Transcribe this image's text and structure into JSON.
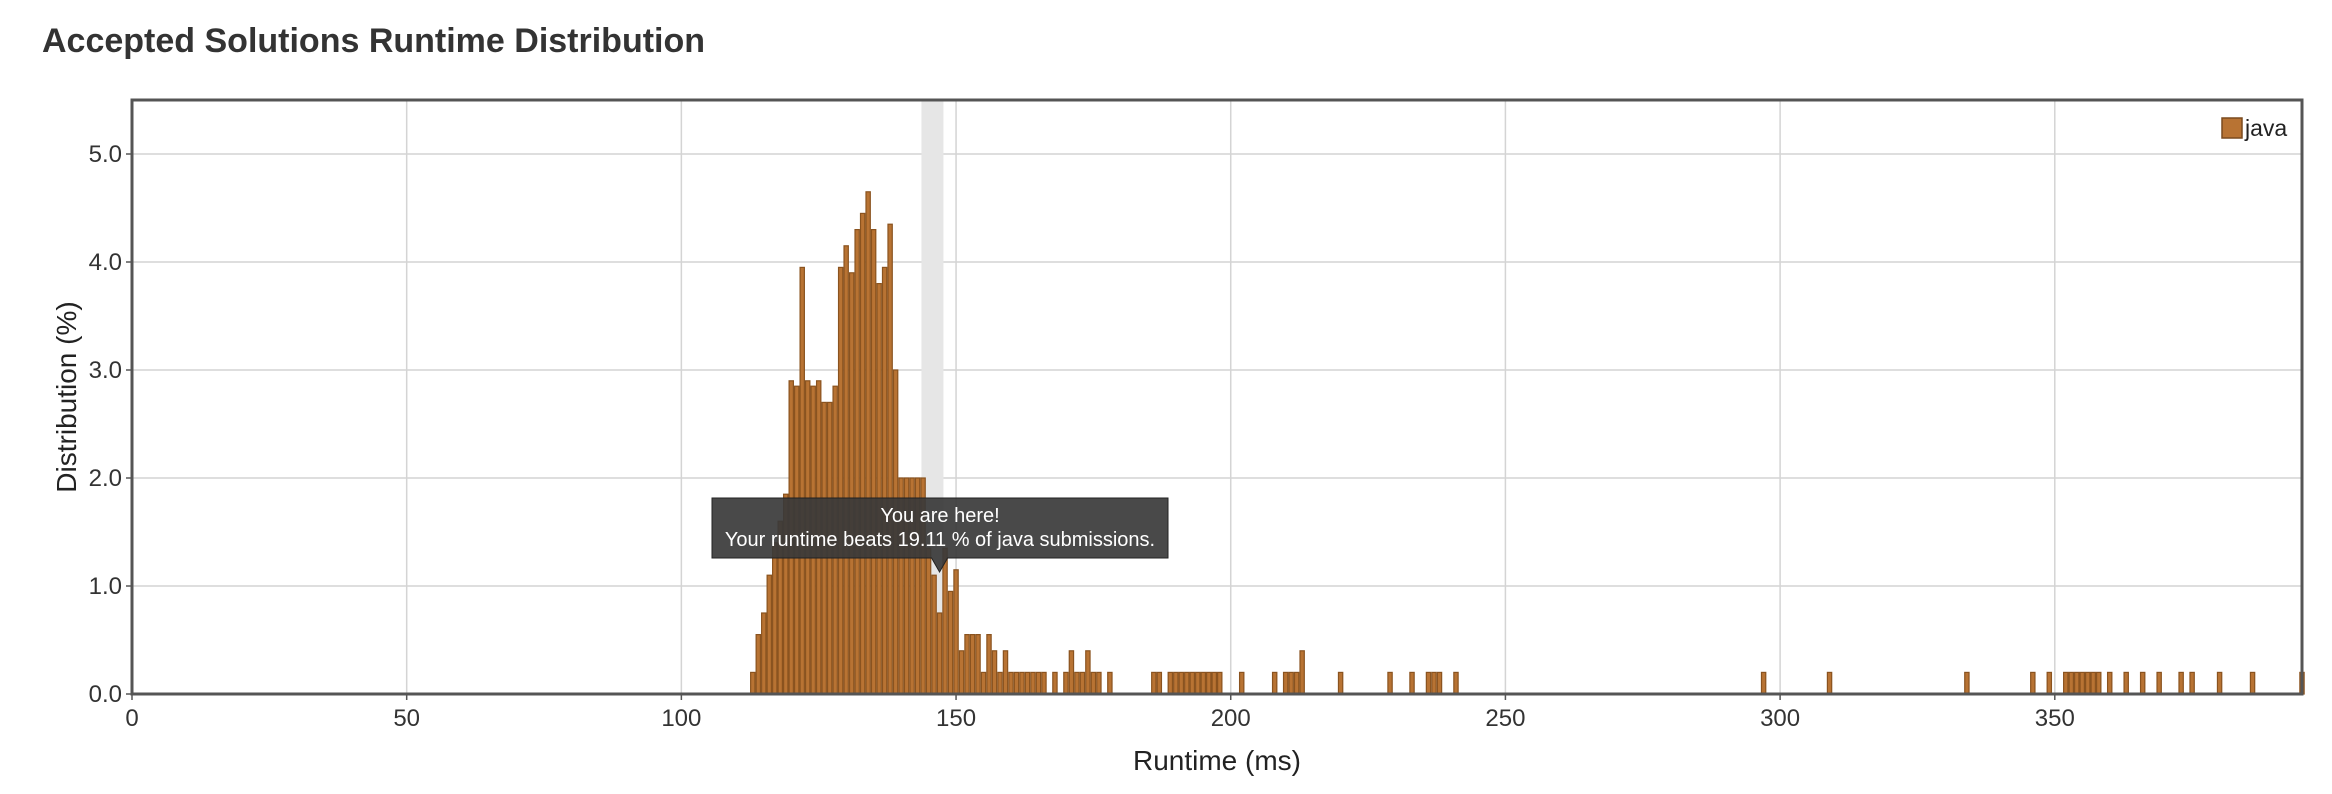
{
  "page": {
    "title": "Accepted Solutions Runtime Distribution"
  },
  "chart_data": {
    "type": "bar",
    "xlabel": "Runtime (ms)",
    "ylabel": "Distribution (%)",
    "xlim": [
      0,
      395
    ],
    "ylim": [
      0,
      5.5
    ],
    "x_ticks": [
      0,
      50,
      100,
      150,
      200,
      250,
      300,
      350
    ],
    "y_ticks": [
      0.0,
      1.0,
      2.0,
      3.0,
      4.0,
      5.0
    ],
    "y_tick_labels": [
      "0.0",
      "1.0",
      "2.0",
      "3.0",
      "4.0",
      "5.0"
    ],
    "grid": true,
    "legend_position": "top-right",
    "bar_width_ms": 1,
    "series": [
      {
        "name": "java",
        "color": "#b87333",
        "x": [
          113,
          114,
          115,
          116,
          117,
          118,
          119,
          120,
          121,
          122,
          123,
          124,
          125,
          126,
          127,
          128,
          129,
          130,
          131,
          132,
          133,
          134,
          135,
          136,
          137,
          138,
          139,
          140,
          141,
          142,
          143,
          144,
          145,
          146,
          147,
          148,
          149,
          150,
          151,
          152,
          153,
          154,
          155,
          156,
          157,
          158,
          159,
          160,
          161,
          162,
          163,
          164,
          165,
          166,
          168,
          170,
          171,
          172,
          173,
          174,
          175,
          176,
          178,
          186,
          187,
          189,
          190,
          191,
          192,
          193,
          194,
          195,
          196,
          197,
          198,
          202,
          208,
          210,
          211,
          212,
          213,
          220,
          229,
          233,
          236,
          237,
          238,
          241,
          297,
          309,
          334,
          346,
          349,
          352,
          353,
          354,
          355,
          356,
          357,
          358,
          360,
          363,
          366,
          369,
          373,
          375,
          380,
          386,
          395
        ],
        "values": [
          0.2,
          0.55,
          0.75,
          1.1,
          1.4,
          1.6,
          1.85,
          2.9,
          2.85,
          3.95,
          2.9,
          2.85,
          2.9,
          2.7,
          2.7,
          2.85,
          3.95,
          4.15,
          3.9,
          4.3,
          4.45,
          4.65,
          4.3,
          3.8,
          3.95,
          4.35,
          3.0,
          2.0,
          2.0,
          2.0,
          2.0,
          2.0,
          1.35,
          1.1,
          0.75,
          1.35,
          0.95,
          1.15,
          0.4,
          0.55,
          0.55,
          0.55,
          0.2,
          0.55,
          0.4,
          0.2,
          0.4,
          0.2,
          0.2,
          0.2,
          0.2,
          0.2,
          0.2,
          0.2,
          0.2,
          0.2,
          0.4,
          0.2,
          0.2,
          0.4,
          0.2,
          0.2,
          0.2,
          0.2,
          0.2,
          0.2,
          0.2,
          0.2,
          0.2,
          0.2,
          0.2,
          0.2,
          0.2,
          0.2,
          0.2,
          0.2,
          0.2,
          0.2,
          0.2,
          0.2,
          0.4,
          0.2,
          0.2,
          0.2,
          0.2,
          0.2,
          0.2,
          0.2,
          0.2,
          0.2,
          0.2,
          0.2,
          0.2,
          0.2,
          0.2,
          0.2,
          0.2,
          0.2,
          0.2,
          0.2,
          0.2,
          0.2,
          0.2,
          0.2,
          0.2,
          0.2,
          0.2,
          0.2,
          0.2
        ]
      }
    ],
    "highlight_x": 147,
    "tooltip": {
      "line1": "You are here!",
      "line2": "Your runtime beats 19.11 % of java submissions."
    }
  }
}
